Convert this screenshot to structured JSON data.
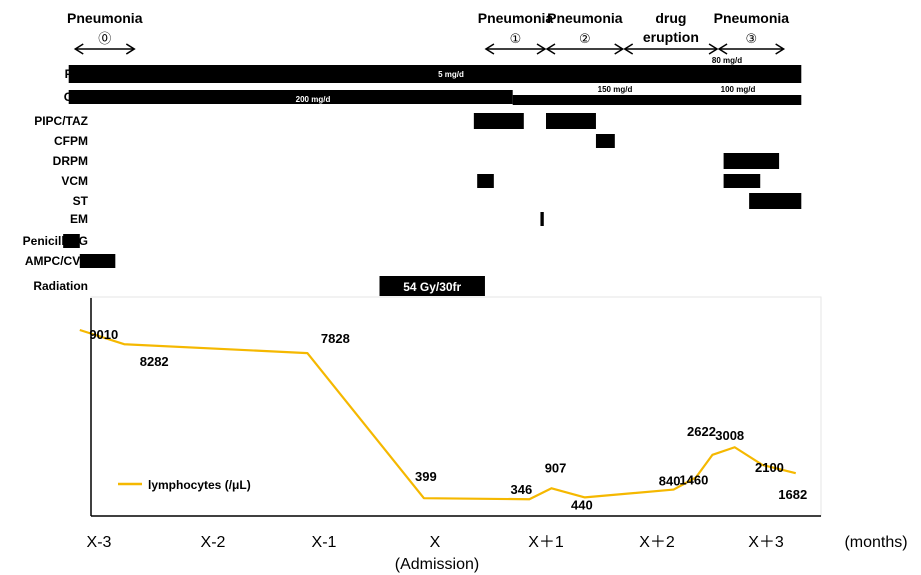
{
  "chart_data": {
    "type": "line",
    "x_tick_labels": [
      "X-3",
      "X-2",
      "X-1",
      "X",
      "X＋1",
      "X＋2",
      "X＋3"
    ],
    "x_axis_unit": "(months)",
    "x_axis_annotation": "(Admission)",
    "legend": {
      "label": "lymphocytes (/μL)",
      "position": "bottom-left",
      "color": "#f5b800"
    },
    "series": [
      {
        "name": "lymphocytes (/μL)",
        "color": "#f5b800",
        "points": [
          {
            "x": -3.2,
            "y": 9010
          },
          {
            "x": -2.8,
            "y": 8282
          },
          {
            "x": -1.15,
            "y": 7828
          },
          {
            "x": -0.1,
            "y": 399
          },
          {
            "x": 0.85,
            "y": 346
          },
          {
            "x": 1.05,
            "y": 907
          },
          {
            "x": 1.35,
            "y": 440
          },
          {
            "x": 2.15,
            "y": 840
          },
          {
            "x": 2.35,
            "y": 1460
          },
          {
            "x": 2.5,
            "y": 2622
          },
          {
            "x": 2.7,
            "y": 3008
          },
          {
            "x": 2.95,
            "y": 2100
          },
          {
            "x": 3.25,
            "y": 1682
          }
        ]
      }
    ],
    "value_labels": [
      "9010",
      "8282",
      "7828",
      "399",
      "346",
      "907",
      "440",
      "840",
      "1460",
      "2622",
      "3008",
      "2100",
      "1682"
    ],
    "episodes": [
      {
        "title": "Pneumonia",
        "marker": "⓪",
        "start": -3.25,
        "end": -2.7
      },
      {
        "title": "Pneumonia",
        "marker": "①",
        "start": 0.45,
        "end": 1.0
      },
      {
        "title": "Pneumonia",
        "marker": "②",
        "start": 1.0,
        "end": 1.7
      },
      {
        "title": "drug eruption",
        "marker": "",
        "start": 1.7,
        "end": 2.55
      },
      {
        "title": "Pneumonia",
        "marker": "③",
        "start": 2.55,
        "end": 3.15
      }
    ],
    "treatments": [
      {
        "name": "PSL",
        "segments": [
          {
            "start": -3.3,
            "end": 3.3,
            "dose": "5 mg/d"
          }
        ],
        "extra_dose": "80 mg/d"
      },
      {
        "name": "CYA",
        "segments": [
          {
            "start": -3.3,
            "end": 0.7,
            "dose": "200 mg/d"
          },
          {
            "start": 0.7,
            "end": 3.3,
            "dose": "150 mg/d"
          }
        ],
        "extra_dose": "100 mg/d"
      },
      {
        "name": "PIPC/TAZ",
        "segments": [
          {
            "start": 0.35,
            "end": 0.8
          },
          {
            "start": 1.0,
            "end": 1.45
          }
        ]
      },
      {
        "name": "CFPM",
        "segments": [
          {
            "start": 1.45,
            "end": 1.62
          }
        ]
      },
      {
        "name": "DRPM",
        "segments": [
          {
            "start": 2.6,
            "end": 3.1
          }
        ]
      },
      {
        "name": "VCM",
        "segments": [
          {
            "start": 0.38,
            "end": 0.53
          },
          {
            "start": 2.6,
            "end": 2.93
          }
        ]
      },
      {
        "name": "ST",
        "segments": [
          {
            "start": 2.83,
            "end": 3.3
          }
        ]
      },
      {
        "name": "EM",
        "segments": [
          {
            "start": 0.95,
            "end": 0.98
          }
        ]
      },
      {
        "name": "Penicillin G",
        "segments": [
          {
            "start": -3.35,
            "end": -3.2
          }
        ]
      },
      {
        "name": "AMPC/CVA",
        "segments": [
          {
            "start": -3.2,
            "end": -2.88
          }
        ]
      },
      {
        "name": "Radiation",
        "segments": [
          {
            "start": -0.5,
            "end": 0.45,
            "dose": "54 Gy/30fr"
          }
        ]
      }
    ]
  }
}
